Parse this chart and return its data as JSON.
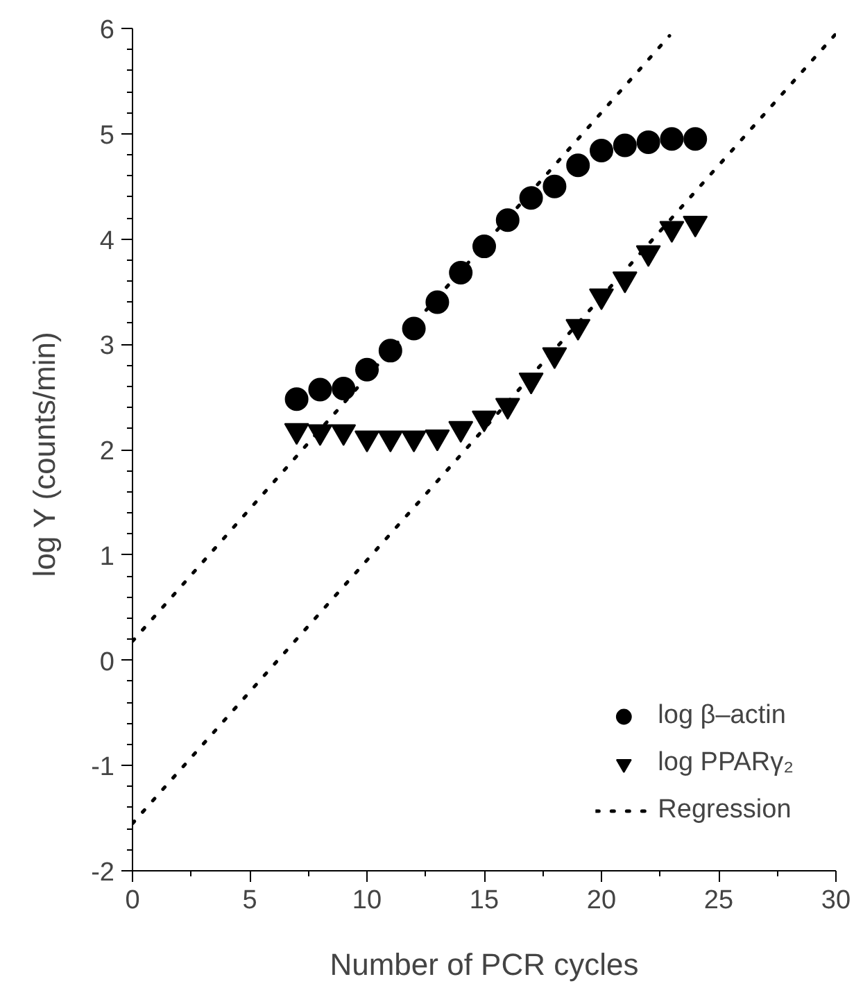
{
  "chart_data": {
    "type": "scatter",
    "xlabel": "Number of PCR cycles",
    "ylabel": "log Y  (counts/min)",
    "x": [
      7,
      8,
      9,
      10,
      11,
      12,
      13,
      14,
      15,
      16,
      17,
      18,
      19,
      20,
      21,
      22,
      23,
      24
    ],
    "series": [
      {
        "name": "log β–actin",
        "color": "#000000",
        "marker": "circle",
        "values": [
          2.48,
          2.57,
          2.58,
          2.76,
          2.94,
          3.15,
          3.4,
          3.68,
          3.93,
          4.18,
          4.39,
          4.5,
          4.7,
          4.84,
          4.89,
          4.92,
          4.95,
          4.95
        ]
      },
      {
        "name": "log PPARγ₂",
        "color": "#000000",
        "marker": "triangle",
        "values": [
          2.18,
          2.17,
          2.17,
          2.11,
          2.11,
          2.11,
          2.12,
          2.2,
          2.3,
          2.42,
          2.66,
          2.9,
          3.17,
          3.46,
          3.62,
          3.87,
          4.1,
          4.15
        ]
      },
      {
        "name": "Regression",
        "type": "line",
        "line_style": "dotted",
        "color": "#000000",
        "marker": "none",
        "x": [
          0,
          22.9
        ],
        "values": [
          0.18,
          5.93
        ]
      },
      {
        "type": "line",
        "line_style": "dotted",
        "color": "#000000",
        "marker": "none",
        "x": [
          0,
          30
        ],
        "values": [
          -1.55,
          5.95
        ]
      }
    ],
    "xlim": [
      0,
      30
    ],
    "ylim": [
      -2,
      6
    ],
    "xticks": [
      0,
      {
        "value": 2.5,
        "label": null
      },
      5,
      {
        "value": 7.5,
        "label": null
      },
      10,
      {
        "value": 12.5,
        "label": null
      },
      15,
      {
        "value": 17.5,
        "label": null
      },
      20,
      {
        "value": 22.5,
        "label": null
      },
      25,
      {
        "value": 27.5,
        "label": null
      },
      30
    ],
    "yticks": [
      -2,
      {
        "value": -1.8,
        "label": null
      },
      {
        "value": -1.6,
        "label": null
      },
      {
        "value": -1.4,
        "label": null
      },
      {
        "value": -1.2,
        "label": null
      },
      -1,
      {
        "value": -0.8,
        "label": null
      },
      {
        "value": -0.6,
        "label": null
      },
      {
        "value": -0.4,
        "label": null
      },
      {
        "value": -0.2,
        "label": null
      },
      0,
      {
        "value": 0.2,
        "label": null
      },
      {
        "value": 0.4,
        "label": null
      },
      {
        "value": 0.6,
        "label": null
      },
      {
        "value": 0.8,
        "label": null
      },
      1,
      {
        "value": 1.2,
        "label": null
      },
      {
        "value": 1.4,
        "label": null
      },
      {
        "value": 1.6,
        "label": null
      },
      {
        "value": 1.8,
        "label": null
      },
      2,
      {
        "value": 2.2,
        "label": null
      },
      {
        "value": 2.4,
        "label": null
      },
      {
        "value": 2.6,
        "label": null
      },
      {
        "value": 2.8,
        "label": null
      },
      3,
      {
        "value": 3.2,
        "label": null
      },
      {
        "value": 3.4,
        "label": null
      },
      {
        "value": 3.6,
        "label": null
      },
      {
        "value": 3.8,
        "label": null
      },
      4,
      {
        "value": 4.2,
        "label": null
      },
      {
        "value": 4.4,
        "label": null
      },
      {
        "value": 4.6,
        "label": null
      },
      {
        "value": 4.8,
        "label": null
      },
      5,
      {
        "value": 5.2,
        "label": null
      },
      {
        "value": 5.4,
        "label": null
      },
      {
        "value": 5.6,
        "label": null
      },
      {
        "value": 5.8,
        "label": null
      },
      6
    ],
    "grid": false,
    "legend": "bottom right"
  }
}
